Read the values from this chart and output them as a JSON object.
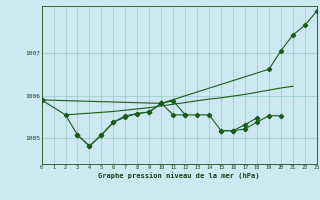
{
  "x": [
    0,
    1,
    2,
    3,
    4,
    5,
    6,
    7,
    8,
    9,
    10,
    11,
    12,
    13,
    14,
    15,
    16,
    17,
    18,
    19,
    20,
    21,
    22,
    23
  ],
  "line1_smooth": {
    "x": [
      0,
      2,
      3,
      4,
      5,
      6,
      7,
      8,
      9,
      10,
      11,
      12,
      13,
      14,
      15,
      16,
      17,
      18,
      19,
      20,
      21
    ],
    "y": [
      1005.9,
      1005.55,
      1005.57,
      1005.59,
      1005.61,
      1005.63,
      1005.66,
      1005.69,
      1005.72,
      1005.76,
      1005.8,
      1005.84,
      1005.88,
      1005.92,
      1005.95,
      1005.99,
      1006.03,
      1006.08,
      1006.13,
      1006.18,
      1006.22
    ]
  },
  "line2": [
    1005.9,
    null,
    1005.55,
    1005.08,
    1004.82,
    1005.08,
    1005.38,
    1005.53,
    1005.58,
    1005.62,
    1005.82,
    1005.55,
    1005.55,
    1005.55,
    1005.55,
    1005.18,
    1005.18,
    1005.22,
    1005.38,
    1005.53,
    1005.53,
    null,
    null,
    null
  ],
  "line3": [
    1005.9,
    null,
    null,
    1005.08,
    1004.82,
    1005.08,
    1005.38,
    1005.5,
    1005.58,
    1005.62,
    1005.82,
    1005.88,
    1005.55,
    null,
    null,
    1005.18,
    1005.18,
    1005.32,
    1005.48,
    null,
    null,
    null,
    null,
    null
  ],
  "line4": {
    "x": [
      0,
      10,
      19,
      20,
      21,
      22,
      23
    ],
    "y": [
      1005.9,
      1005.82,
      1006.62,
      1007.05,
      1007.42,
      1007.65,
      1007.98
    ]
  },
  "bg_color": "#cce8f0",
  "grid_color": "#99cccc",
  "line_color": "#1a5c1a",
  "ylabel_ticks": [
    1005,
    1006,
    1007
  ],
  "xlabel_ticks": [
    0,
    1,
    2,
    3,
    4,
    5,
    6,
    7,
    8,
    9,
    10,
    11,
    12,
    13,
    14,
    15,
    16,
    17,
    18,
    19,
    20,
    21,
    22,
    23
  ],
  "xlabel_label": "Graphe pression niveau de la mer (hPa)",
  "ylim": [
    1004.4,
    1008.1
  ],
  "xlim": [
    0,
    23
  ]
}
